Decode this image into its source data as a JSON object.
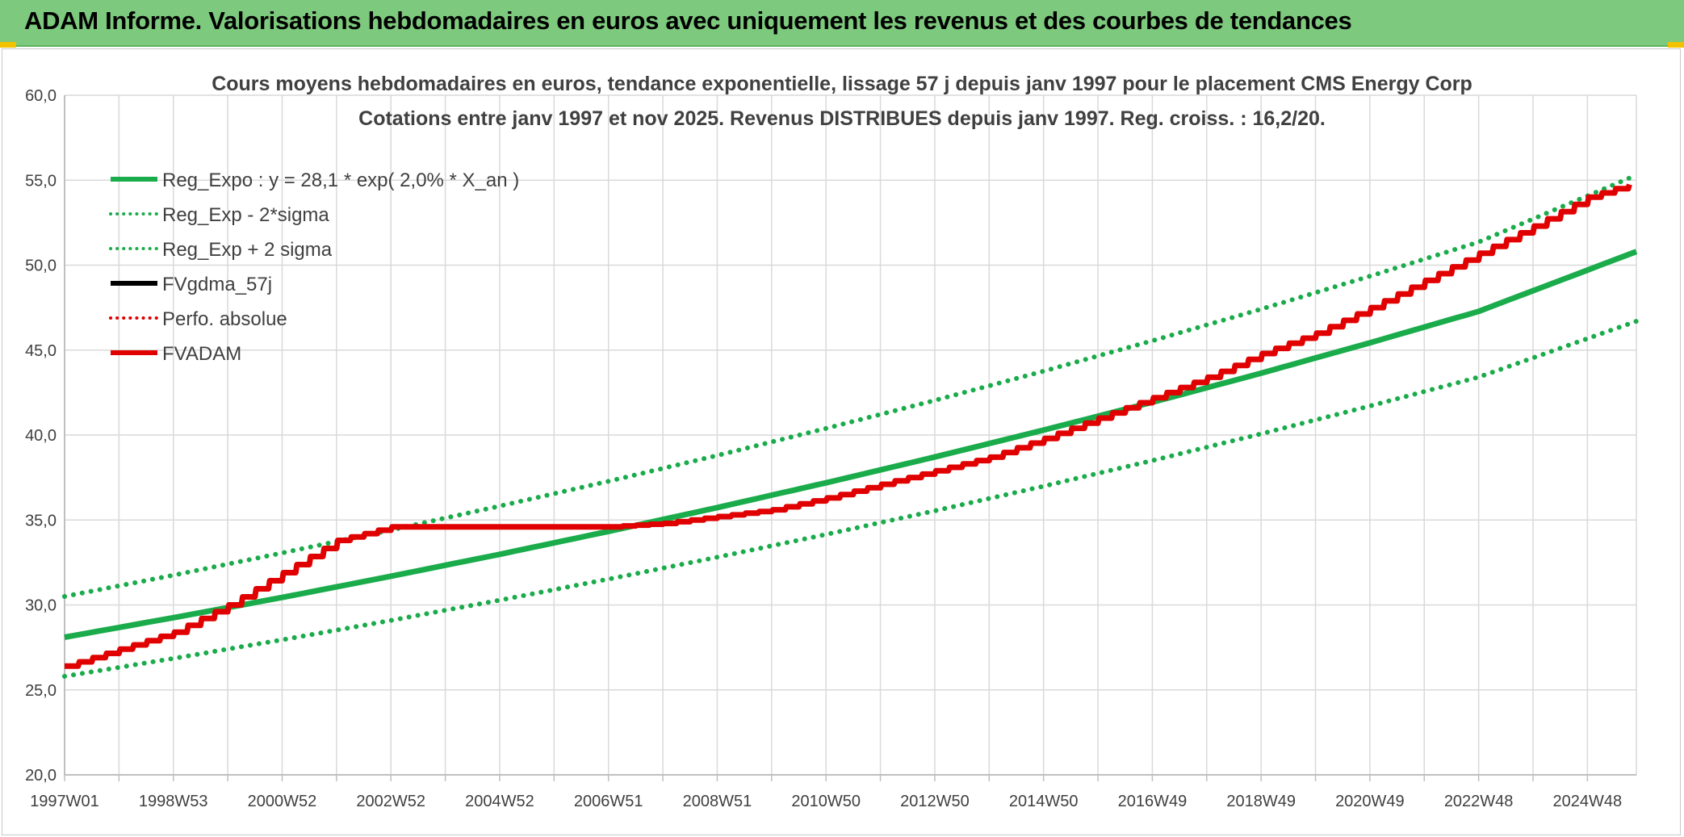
{
  "header": {
    "title": "ADAM Informe. Valorisations hebdomadaires en euros avec uniquement les revenus et des courbes de tendances"
  },
  "chart_data": {
    "type": "line",
    "title": "Cours moyens hebdomadaires en euros, tendance exponentielle, lissage 57 j depuis janv 1997 pour le placement CMS Energy Corp",
    "subtitle": "Cotations entre janv 1997 et nov 2025. Revenus DISTRIBUES depuis janv 1997. Reg. croiss. : 16,2/20.",
    "xlabel": "",
    "ylabel": "",
    "ylim": [
      20,
      60
    ],
    "yticks": [
      "20,0",
      "25,0",
      "30,0",
      "35,0",
      "40,0",
      "45,0",
      "50,0",
      "55,0",
      "60,0"
    ],
    "xlim": [
      1997.0,
      2025.9
    ],
    "xticks": [
      {
        "label": "1997W01",
        "x": 1997.0
      },
      {
        "label": "1998W53",
        "x": 1999.0
      },
      {
        "label": "2000W52",
        "x": 2001.0
      },
      {
        "label": "2002W52",
        "x": 2003.0
      },
      {
        "label": "2004W52",
        "x": 2005.0
      },
      {
        "label": "2006W51",
        "x": 2007.0
      },
      {
        "label": "2008W51",
        "x": 2009.0
      },
      {
        "label": "2010W50",
        "x": 2011.0
      },
      {
        "label": "2012W50",
        "x": 2013.0
      },
      {
        "label": "2014W50",
        "x": 2015.0
      },
      {
        "label": "2016W49",
        "x": 2017.0
      },
      {
        "label": "2018W49",
        "x": 2019.0
      },
      {
        "label": "2020W49",
        "x": 2021.0
      },
      {
        "label": "2022W48",
        "x": 2023.0
      },
      {
        "label": "2024W48",
        "x": 2025.0
      }
    ],
    "grid": true,
    "legend_position": "top-left",
    "series": [
      {
        "name": "Reg_Expo : y = 28,1 * exp( 2,0% *  X_an )",
        "color": "#1aab4b",
        "style": "solid",
        "x": [
          1997,
          1999,
          2001,
          2003,
          2005,
          2007,
          2009,
          2011,
          2013,
          2015,
          2017,
          2019,
          2021,
          2023,
          2025.9
        ],
        "y": [
          28.1,
          29.25,
          30.44,
          31.69,
          32.98,
          34.33,
          35.73,
          37.19,
          38.71,
          40.29,
          41.93,
          43.64,
          45.43,
          47.28,
          50.8
        ]
      },
      {
        "name": "Reg_Exp - 2*sigma",
        "color": "#1aab4b",
        "style": "dotted",
        "x": [
          1997,
          1999,
          2001,
          2003,
          2005,
          2007,
          2009,
          2011,
          2013,
          2015,
          2017,
          2019,
          2021,
          2023,
          2025.9
        ],
        "y": [
          25.8,
          26.85,
          27.95,
          29.09,
          30.28,
          31.52,
          32.81,
          34.15,
          35.54,
          36.99,
          38.5,
          40.07,
          41.71,
          43.41,
          46.7
        ]
      },
      {
        "name": "Reg_Exp + 2 sigma",
        "color": "#1aab4b",
        "style": "dotted",
        "x": [
          1997,
          1999,
          2001,
          2003,
          2005,
          2007,
          2009,
          2011,
          2013,
          2015,
          2017,
          2019,
          2021,
          2023,
          2025.9
        ],
        "y": [
          30.5,
          31.75,
          33.06,
          34.41,
          35.82,
          37.28,
          38.8,
          40.39,
          42.04,
          43.76,
          45.55,
          47.41,
          49.35,
          51.36,
          55.3
        ]
      },
      {
        "name": "FVgdma_57j",
        "color": "#000000",
        "style": "solid",
        "x": [],
        "y": []
      },
      {
        "name": "Perfo. absolue",
        "color": "#e00000",
        "style": "dotted",
        "x": [],
        "y": []
      },
      {
        "name": "FVADAM",
        "color": "#e00000",
        "style": "solid",
        "x": [
          1997,
          1998,
          1999,
          2000,
          2001,
          2002,
          2003,
          2004,
          2005,
          2006,
          2007,
          2008,
          2009,
          2010,
          2011,
          2012,
          2013,
          2014,
          2015,
          2016,
          2017,
          2018,
          2019,
          2020,
          2021,
          2022,
          2023,
          2024,
          2025,
          2025.9
        ],
        "y": [
          26.4,
          27.4,
          28.4,
          30.0,
          31.9,
          33.8,
          34.6,
          34.6,
          34.6,
          34.6,
          34.6,
          34.8,
          35.2,
          35.6,
          36.3,
          37.1,
          37.9,
          38.7,
          39.8,
          41.0,
          42.2,
          43.4,
          44.8,
          46.0,
          47.5,
          49.1,
          50.7,
          52.3,
          54.0,
          54.9
        ]
      }
    ]
  }
}
